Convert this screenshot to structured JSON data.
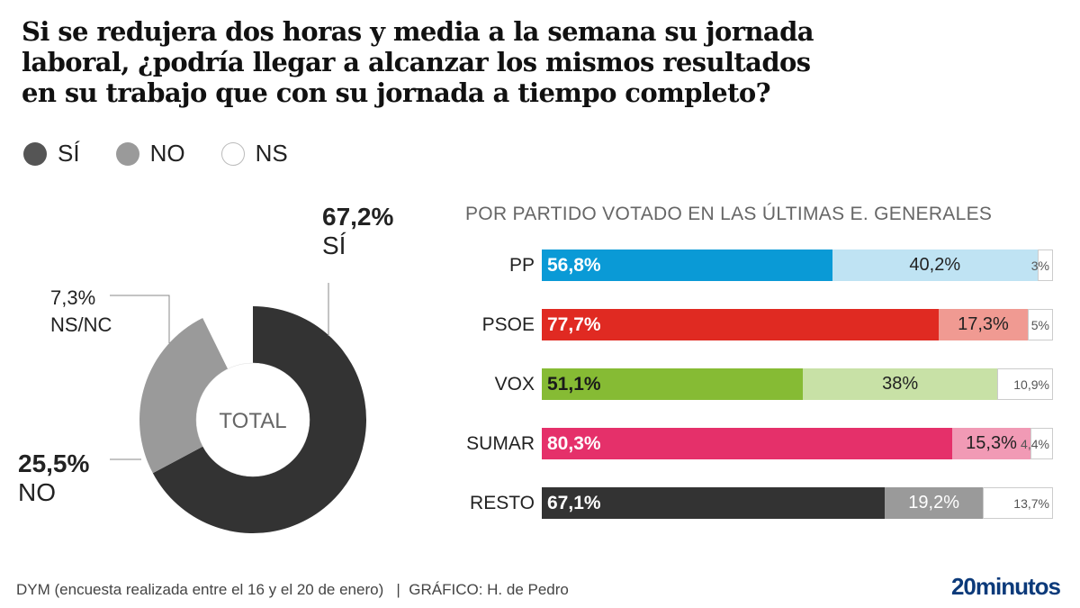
{
  "title": "Si se redujera dos horas y media a la semana su jornada laboral, ¿podría llegar a alcanzar los mismos resultados en su trabajo que con su jornada a tiempo completo?",
  "legend": [
    {
      "label": "SÍ",
      "color": "#3a3a3a"
    },
    {
      "label": "NO",
      "color": "#9a9a9a"
    },
    {
      "label": "NS",
      "color": "#ffffff"
    }
  ],
  "footer": {
    "source": "DYM (encuesta realizada entre el 16 y el 20 de enero)   |  GRÁFICO: H. de Pedro",
    "brand": "20minutos"
  },
  "chart_data": [
    {
      "type": "pie",
      "variant": "donut",
      "center_label": "TOTAL",
      "slices": [
        {
          "name": "SÍ",
          "value": 67.2,
          "label_value": "67,2%",
          "label_name": "SÍ",
          "color": "#333333"
        },
        {
          "name": "NO",
          "value": 25.5,
          "label_value": "25,5%",
          "label_name": "NO",
          "color": "#9a9a9a"
        },
        {
          "name": "NS/NC",
          "value": 7.3,
          "label_value": "7,3%",
          "label_name": "NS/NC",
          "color": "#ffffff"
        }
      ]
    },
    {
      "type": "bar",
      "orientation": "horizontal",
      "stacked": true,
      "title": "POR PARTIDO VOTADO EN LAS ÚLTIMAS E. GENERALES",
      "categories": [
        "PP",
        "PSOE",
        "VOX",
        "SUMAR",
        "RESTO"
      ],
      "series": [
        {
          "name": "SÍ",
          "values": [
            56.8,
            77.7,
            51.1,
            80.3,
            67.1
          ],
          "labels": [
            "56,8%",
            "77,7%",
            "51,1%",
            "80,3%",
            "67,1%"
          ]
        },
        {
          "name": "NO",
          "values": [
            40.2,
            17.3,
            38,
            15.3,
            19.2
          ],
          "labels": [
            "40,2%",
            "17,3%",
            "38%",
            "15,3%",
            "19,2%"
          ]
        },
        {
          "name": "NS",
          "values": [
            3,
            5,
            10.9,
            4.4,
            13.7
          ],
          "labels": [
            "3%",
            "5%",
            "10,9%",
            "4,4%",
            "13,7%"
          ]
        }
      ],
      "colors": {
        "PP": {
          "yes": "#0a9ad6",
          "no": "#bfe3f3",
          "yes_text": "#ffffff",
          "no_text": "#222222"
        },
        "PSOE": {
          "yes": "#e02a22",
          "no": "#f09a92",
          "yes_text": "#ffffff",
          "no_text": "#222222"
        },
        "VOX": {
          "yes": "#86bb34",
          "no": "#c8e1a6",
          "yes_text": "#1a1a1a",
          "no_text": "#222222"
        },
        "SUMAR": {
          "yes": "#e5306a",
          "no": "#f19ab5",
          "yes_text": "#ffffff",
          "no_text": "#222222"
        },
        "RESTO": {
          "yes": "#333333",
          "no": "#9a9a9a",
          "yes_text": "#ffffff",
          "no_text": "#ffffff"
        }
      },
      "xlim": [
        0,
        100
      ]
    }
  ]
}
